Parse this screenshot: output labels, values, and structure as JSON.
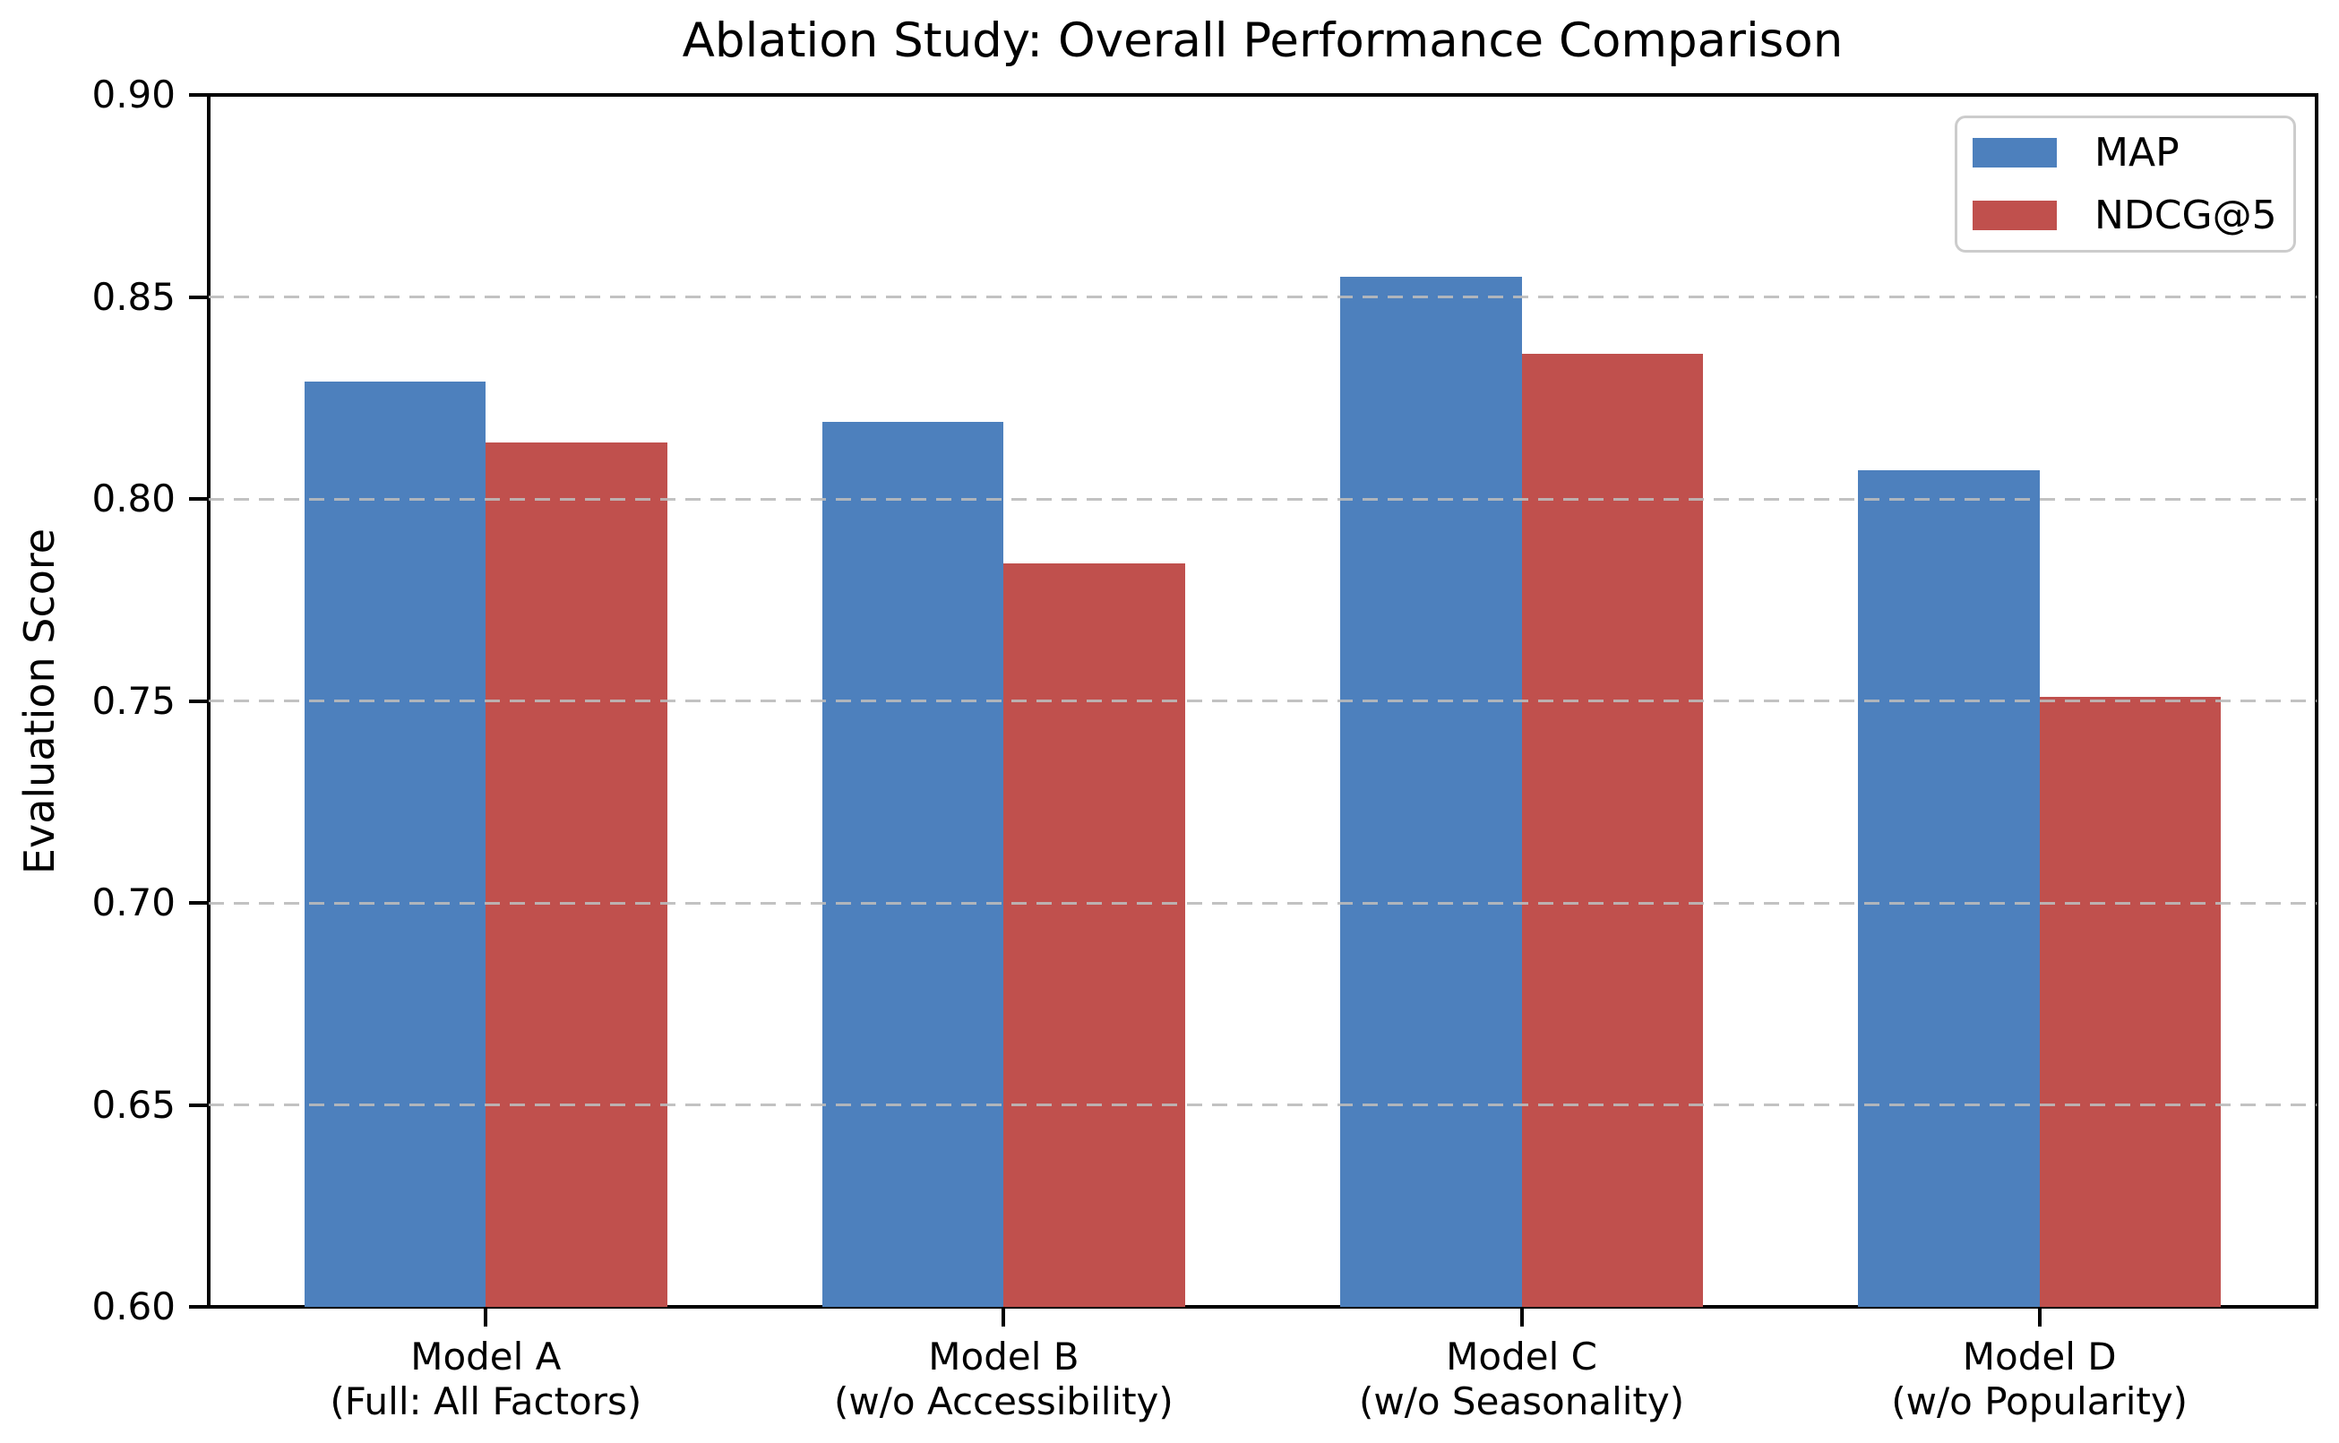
{
  "chart_data": {
    "type": "bar",
    "title": "Ablation Study: Overall Performance Comparison",
    "ylabel": "Evaluation Score",
    "xlabel": "",
    "categories": [
      "Model A",
      "Model B",
      "Model C",
      "Model D"
    ],
    "category_sublabels": [
      "(Full: All Factors)",
      "(w/o Accessibility)",
      "(w/o Seasonality)",
      "(w/o Popularity)"
    ],
    "series": [
      {
        "name": "MAP",
        "color": "#4d80bd",
        "values": [
          0.829,
          0.819,
          0.855,
          0.807
        ]
      },
      {
        "name": "NDCG@5",
        "color": "#c0504d",
        "values": [
          0.814,
          0.784,
          0.836,
          0.751
        ]
      }
    ],
    "ylim": [
      0.6,
      0.9
    ],
    "yticks": [
      0.6,
      0.65,
      0.7,
      0.75,
      0.8,
      0.85,
      0.9
    ],
    "ytick_labels": [
      "0.60",
      "0.65",
      "0.70",
      "0.75",
      "0.80",
      "0.85",
      "0.90"
    ],
    "bar_width_units": 0.35,
    "grid": {
      "axis": "y",
      "style": "dashed",
      "color": "#bbbbbb",
      "drawn_over_bars": true
    },
    "legend": {
      "position": "upper right",
      "entries": [
        "MAP",
        "NDCG@5"
      ]
    },
    "colors": {
      "spine": "#000000",
      "text": "#000000",
      "legend_border": "#cccccc",
      "background": "#ffffff"
    }
  }
}
